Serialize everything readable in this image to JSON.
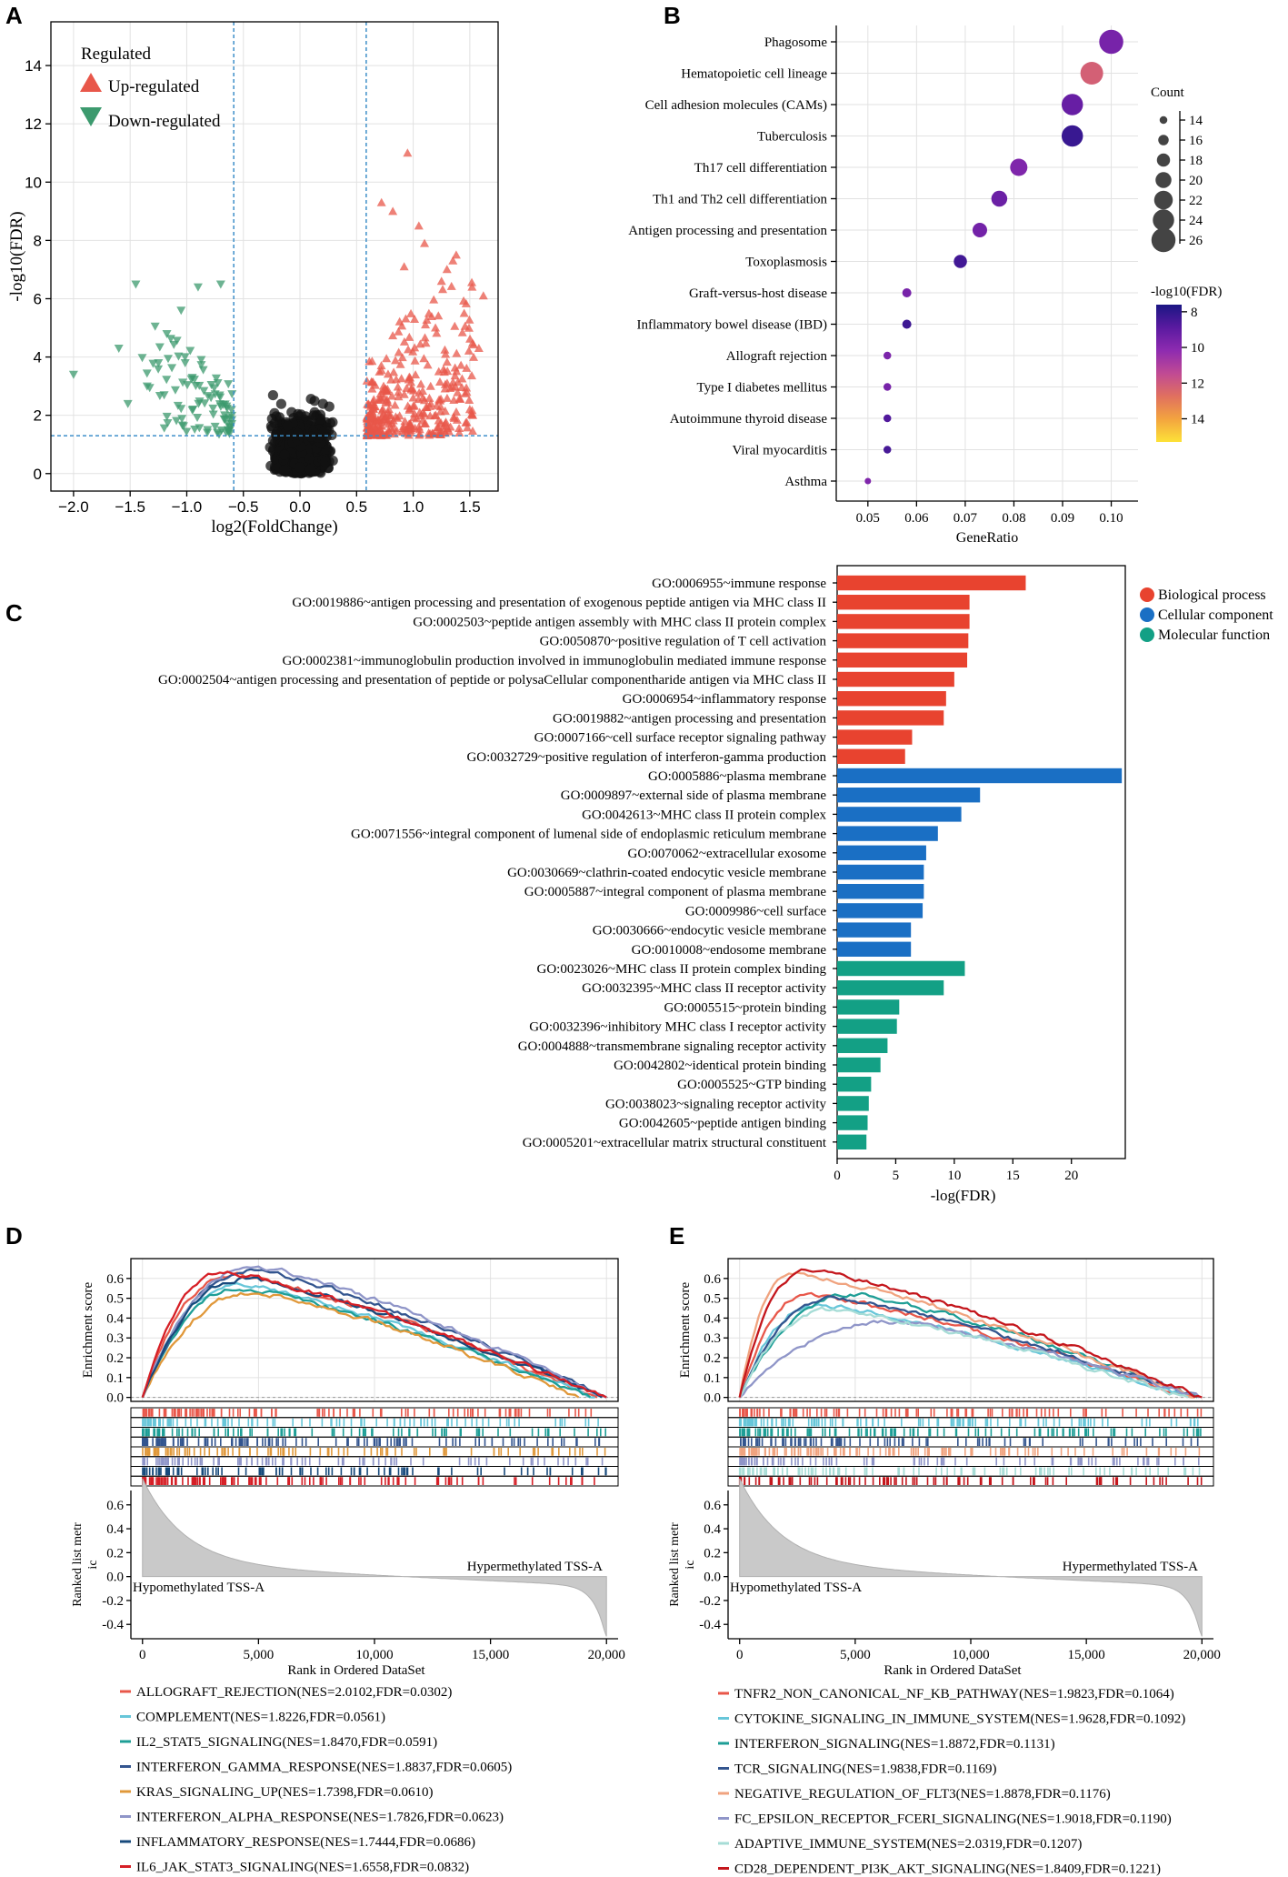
{
  "panels": {
    "a": "A",
    "b": "B",
    "c": "C",
    "d": "D",
    "e": "E"
  },
  "chart_data": [
    {
      "id": "volcano",
      "type": "scatter",
      "xlabel": "log2(FoldChange)",
      "ylabel": "-log10(FDR)",
      "xlim": [
        -2.2,
        1.75
      ],
      "ylim": [
        -0.6,
        15.5
      ],
      "xticks": [
        -2.0,
        -1.5,
        -1.0,
        -0.5,
        0.0,
        0.5,
        1.0,
        1.5
      ],
      "xtick_labels": [
        "−2.0",
        "−1.5",
        "−1.0",
        "−0.5",
        "0.0",
        "0.5",
        "1.0",
        "1.5"
      ],
      "yticks": [
        0,
        2,
        4,
        6,
        8,
        10,
        12,
        14
      ],
      "thresholds": {
        "x": [
          -0.585,
          0.585
        ],
        "y": 1.3
      },
      "legend": {
        "title": "Regulated",
        "up": "Up-regulated",
        "down": "Down-regulated",
        "up_color": "#e8574a",
        "down_color": "#3c9a6e",
        "ns_color": "#111111"
      },
      "highlight_points": {
        "up": [
          [
            0.95,
            11.0
          ],
          [
            0.72,
            9.3
          ],
          [
            0.82,
            9.0
          ],
          [
            1.05,
            8.5
          ],
          [
            1.1,
            7.9
          ],
          [
            1.38,
            7.5
          ],
          [
            1.52,
            6.4
          ],
          [
            1.62,
            6.1
          ],
          [
            0.92,
            7.1
          ],
          [
            1.25,
            6.6
          ],
          [
            1.45,
            5.5
          ],
          [
            1.58,
            4.3
          ],
          [
            1.3,
            3.1
          ],
          [
            1.5,
            2.2
          ],
          [
            1.2,
            2.0
          ],
          [
            1.0,
            2.6
          ]
        ],
        "down": [
          [
            -2.0,
            3.4
          ],
          [
            -1.45,
            6.5
          ],
          [
            -1.6,
            4.3
          ],
          [
            -1.35,
            3.0
          ],
          [
            -1.2,
            2.7
          ],
          [
            -1.05,
            5.6
          ],
          [
            -0.9,
            6.4
          ],
          [
            -0.7,
            6.5
          ],
          [
            -1.52,
            2.4
          ],
          [
            -1.25,
            3.8
          ]
        ]
      }
    },
    {
      "id": "kegg",
      "type": "scatter",
      "xlabel": "GeneRatio",
      "xlim": [
        0.0435,
        0.1055
      ],
      "xticks": [
        0.05,
        0.06,
        0.07,
        0.08,
        0.09,
        0.1
      ],
      "xtick_labels": [
        "0.05",
        "0.06",
        "0.07",
        "0.08",
        "0.09",
        "0.10"
      ],
      "categories": [
        "Phagosome",
        "Hematopoietic cell lineage",
        "Cell adhesion molecules (CAMs)",
        "Tuberculosis",
        "Th17 cell differentiation",
        "Th1 and Th2 cell differentiation",
        "Antigen processing and presentation",
        "Toxoplasmosis",
        "Graft-versus-host disease",
        "Inflammatory bowel disease (IBD)",
        "Allograft rejection",
        "Type I diabetes mellitus",
        "Autoimmune thyroid disease",
        "Viral myocarditis",
        "Asthma"
      ],
      "gene_ratio": [
        0.1,
        0.096,
        0.092,
        0.092,
        0.081,
        0.077,
        0.073,
        0.069,
        0.058,
        0.058,
        0.054,
        0.054,
        0.054,
        0.054,
        0.05
      ],
      "count": [
        26,
        25,
        24,
        24,
        21,
        20,
        19,
        18,
        15,
        15,
        14,
        14,
        14,
        14,
        13
      ],
      "neg_log10_fdr": [
        9.6,
        12.2,
        9.2,
        8.2,
        9.8,
        9.3,
        9.5,
        8.4,
        9.6,
        8.3,
        9.7,
        9.6,
        8.7,
        8.5,
        9.8
      ],
      "size_legend": {
        "title": "Count",
        "values": [
          14,
          16,
          18,
          20,
          22,
          24,
          26
        ]
      },
      "color_legend": {
        "title": "-log10(FDR)",
        "ticks": [
          8,
          10,
          12,
          14
        ],
        "range": [
          7.6,
          15.3
        ]
      }
    },
    {
      "id": "go",
      "type": "bar",
      "orientation": "horizontal",
      "xlabel": "-log(FDR)",
      "xlim": [
        0,
        24.6
      ],
      "xticks": [
        0,
        5,
        10,
        15,
        20
      ],
      "categories": [
        "GO:0006955~immune response",
        "GO:0019886~antigen processing and presentation of exogenous peptide antigen via MHC class II",
        "GO:0002503~peptide antigen assembly with MHC class II protein complex",
        "GO:0050870~positive regulation of T cell activation",
        "GO:0002381~immunoglobulin production involved in immunoglobulin mediated immune response",
        "GO:0002504~antigen processing and presentation of peptide or polysaCellular componentharide antigen via MHC class II",
        "GO:0006954~inflammatory response",
        "GO:0019882~antigen processing and presentation",
        "GO:0007166~cell surface receptor signaling pathway",
        "GO:0032729~positive regulation of interferon-gamma production",
        "GO:0005886~plasma membrane",
        "GO:0009897~external side of plasma membrane",
        "GO:0042613~MHC class II protein complex",
        "GO:0071556~integral component of lumenal side of endoplasmic reticulum membrane",
        "GO:0070062~extracellular exosome",
        "GO:0030669~clathrin-coated endocytic vesicle membrane",
        "GO:0005887~integral component of plasma membrane",
        "GO:0009986~cell surface",
        "GO:0030666~endocytic vesicle membrane",
        "GO:0010008~endosome membrane",
        "GO:0023026~MHC class II protein complex binding",
        "GO:0032395~MHC class II receptor activity",
        "GO:0005515~protein binding",
        "GO:0032396~inhibitory MHC class I receptor activity",
        "GO:0004888~transmembrane signaling receptor activity",
        "GO:0042802~identical protein binding",
        "GO:0005525~GTP binding",
        "GO:0038023~signaling receptor activity",
        "GO:0042605~peptide antigen binding",
        "GO:0005201~extracellular matrix structural constituent"
      ],
      "values": [
        16.1,
        11.3,
        11.3,
        11.2,
        11.1,
        10.0,
        9.3,
        9.1,
        6.4,
        5.8,
        24.3,
        12.2,
        10.6,
        8.6,
        7.6,
        7.4,
        7.4,
        7.3,
        6.3,
        6.3,
        10.9,
        9.1,
        5.3,
        5.1,
        4.3,
        3.7,
        2.9,
        2.7,
        2.6,
        2.5
      ],
      "groups": [
        0,
        0,
        0,
        0,
        0,
        0,
        0,
        0,
        0,
        0,
        1,
        1,
        1,
        1,
        1,
        1,
        1,
        1,
        1,
        1,
        2,
        2,
        2,
        2,
        2,
        2,
        2,
        2,
        2,
        2
      ],
      "legend": [
        {
          "name": "Biological process",
          "color": "#e8432f"
        },
        {
          "name": "Cellular component",
          "color": "#1a6fc4"
        },
        {
          "name": "Molecular function",
          "color": "#13a085"
        }
      ]
    },
    {
      "id": "gsea_d",
      "type": "line",
      "es_yticks": [
        0.0,
        0.1,
        0.2,
        0.3,
        0.4,
        0.5,
        0.6
      ],
      "es_ytick_labels": [
        "0.0",
        "0.1",
        "0.2",
        "0.3",
        "0.4",
        "0.5",
        "0.6"
      ],
      "es_ylim": [
        -0.02,
        0.7
      ],
      "rank_yticks": [
        -0.4,
        -0.2,
        0.0,
        0.2,
        0.4,
        0.6
      ],
      "rank_ytick_labels": [
        "-0.4",
        "-0.2",
        "0.0",
        "0.2",
        "0.4",
        "0.6"
      ],
      "rank_ylim": [
        -0.52,
        0.72
      ],
      "xlim": [
        -500,
        20500
      ],
      "xticks": [
        0,
        5000,
        10000,
        15000,
        20000
      ],
      "xtick_labels": [
        "0",
        "5,000",
        "10,000",
        "15,000",
        "20,000"
      ],
      "xlabel": "Rank in Ordered DataSet",
      "ylabel_es": "Enrichment score",
      "ylabel_rank_1": "Ranked list metr",
      "ylabel_rank_2": "ic",
      "hyper_label": "Hypermethylated TSS-A",
      "hypo_label": "Hypomethylated TSS-A",
      "series": [
        {
          "name": "ALLOGRAFT_REJECTION(NES=2.0102,FDR=0.0302)",
          "color": "#e8574a",
          "peak": 0.62,
          "peak_rank": 4000,
          "end_rank": 19600
        },
        {
          "name": "COMPLEMENT(NES=1.8226,FDR=0.0561)",
          "color": "#67c6d9",
          "peak": 0.57,
          "peak_rank": 4200,
          "end_rank": 19500
        },
        {
          "name": "IL2_STAT5_SIGNALING(NES=1.8470,FDR=0.0591)",
          "color": "#1e9e96",
          "peak": 0.55,
          "peak_rank": 4400,
          "end_rank": 19300
        },
        {
          "name": "INTERFERON_GAMMA_RESPONSE(NES=1.8837,FDR=0.0605)",
          "color": "#33558f",
          "peak": 0.64,
          "peak_rank": 4900,
          "end_rank": 20000
        },
        {
          "name": "KRAS_SIGNALING_UP(NES=1.7398,FDR=0.0610)",
          "color": "#e0983a",
          "peak": 0.53,
          "peak_rank": 5000,
          "end_rank": 18800
        },
        {
          "name": "INTERFERON_ALPHA_RESPONSE(NES=1.7826,FDR=0.0623)",
          "color": "#8f95c8",
          "peak": 0.66,
          "peak_rank": 5000,
          "end_rank": 20000
        },
        {
          "name": "INFLAMMATORY_RESPONSE(NES=1.7444,FDR=0.0686)",
          "color": "#174a7c",
          "peak": 0.6,
          "peak_rank": 4600,
          "end_rank": 19800
        },
        {
          "name": "IL6_JAK_STAT3_SIGNALING(NES=1.6558,FDR=0.0832)",
          "color": "#d61f26",
          "peak": 0.63,
          "peak_rank": 3600,
          "end_rank": 20000
        }
      ]
    },
    {
      "id": "gsea_e",
      "type": "line",
      "es_yticks": [
        0.0,
        0.1,
        0.2,
        0.3,
        0.4,
        0.5,
        0.6
      ],
      "es_ytick_labels": [
        "0.0",
        "0.1",
        "0.2",
        "0.3",
        "0.4",
        "0.5",
        "0.6"
      ],
      "es_ylim": [
        -0.02,
        0.7
      ],
      "rank_yticks": [
        -0.4,
        -0.2,
        0.0,
        0.2,
        0.4,
        0.6
      ],
      "rank_ytick_labels": [
        "-0.4",
        "-0.2",
        "0.0",
        "0.2",
        "0.4",
        "0.6"
      ],
      "rank_ylim": [
        -0.52,
        0.72
      ],
      "xlim": [
        -500,
        20500
      ],
      "xticks": [
        0,
        5000,
        10000,
        15000,
        20000
      ],
      "xtick_labels": [
        "0",
        "5,000",
        "10,000",
        "15,000",
        "20,000"
      ],
      "xlabel": "Rank in Ordered DataSet",
      "ylabel_es": "Enrichment score",
      "ylabel_rank_1": "Ranked list metr",
      "ylabel_rank_2": "ic",
      "hyper_label": "Hypermethylated TSS-A",
      "hypo_label": "Hypomethylated TSS-A",
      "series": [
        {
          "name": "TNFR2_NON_CANONICAL_NF_KB_PATHWAY(NES=1.9823,FDR=0.1064)",
          "color": "#e8574a",
          "peak": 0.52,
          "peak_rank": 3000,
          "end_rank": 19600
        },
        {
          "name": "CYTOKINE_SIGNALING_IN_IMMUNE_SYSTEM(NES=1.9628,FDR=0.1092)",
          "color": "#67c6d9",
          "peak": 0.47,
          "peak_rank": 3500,
          "end_rank": 19500
        },
        {
          "name": "INTERFERON_SIGNALING(NES=1.8872,FDR=0.1131)",
          "color": "#1e9e96",
          "peak": 0.52,
          "peak_rank": 5000,
          "end_rank": 19800
        },
        {
          "name": "TCR_SIGNALING(NES=1.9838,FDR=0.1169)",
          "color": "#33558f",
          "peak": 0.5,
          "peak_rank": 4200,
          "end_rank": 19900
        },
        {
          "name": "NEGATIVE_REGULATION_OF_FLT3(NES=1.8878,FDR=0.1176)",
          "color": "#f0a37f",
          "peak": 0.63,
          "peak_rank": 2300,
          "end_rank": 19700
        },
        {
          "name": "FC_EPSILON_RECEPTOR_FCERI_SIGNALING(NES=1.9018,FDR=0.1190)",
          "color": "#8f95c8",
          "peak": 0.38,
          "peak_rank": 7000,
          "end_rank": 19900
        },
        {
          "name": "ADAPTIVE_IMMUNE_SYSTEM(NES=2.0319,FDR=0.1207)",
          "color": "#a6dcd6",
          "peak": 0.44,
          "peak_rank": 4000,
          "end_rank": 19400
        },
        {
          "name": "CD28_DEPENDENT_PI3K_AKT_SIGNALING(NES=1.8409,FDR=0.1221)",
          "color": "#c4161c",
          "peak": 0.64,
          "peak_rank": 3000,
          "end_rank": 20000
        }
      ]
    }
  ]
}
